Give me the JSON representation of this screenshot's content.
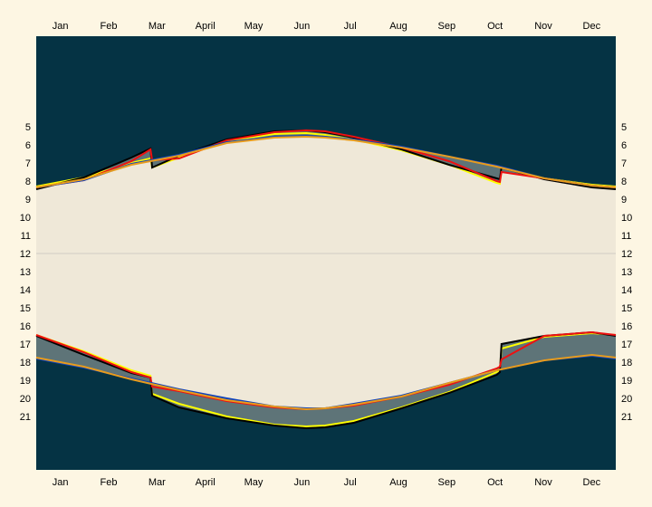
{
  "chart_data": {
    "type": "area",
    "title": "",
    "xlabel": "",
    "ylabel": "",
    "months": [
      "Jan",
      "Feb",
      "Mar",
      "April",
      "May",
      "Jun",
      "Jul",
      "Aug",
      "Sep",
      "Oct",
      "Nov",
      "Dec"
    ],
    "hour_ticks": [
      "5",
      "6",
      "7",
      "8",
      "9",
      "10",
      "11",
      "12",
      "13",
      "14",
      "15",
      "16",
      "17",
      "18",
      "19",
      "20",
      "21"
    ],
    "ylim": [
      0,
      24
    ],
    "xlim": [
      0,
      365
    ],
    "grid_hours": [
      12
    ],
    "colors": {
      "page_background": "#fdf6e3",
      "night": "#053344",
      "day": "#efe8d8",
      "gap": "#5e7478",
      "noon_line": "#d0ccc4",
      "yellow": "#ffff00",
      "black": "#000000",
      "red": "#ee1111",
      "blue": "#1144bb",
      "orange": "#e89c1c"
    },
    "series": [
      {
        "color": "yellow",
        "x": [
          0,
          30,
          60,
          72,
          73,
          90,
          120,
          150,
          170,
          182,
          200,
          230,
          260,
          290,
          292,
          293,
          320,
          350,
          365
        ],
        "sunrise": [
          8.3,
          7.8,
          7.0,
          6.75,
          7.25,
          6.7,
          5.8,
          5.4,
          5.35,
          5.45,
          5.7,
          6.3,
          7.1,
          8.1,
          8.15,
          7.25,
          7.85,
          8.2,
          8.3
        ],
        "sunset": [
          16.5,
          17.4,
          18.45,
          18.75,
          19.75,
          20.3,
          21.0,
          21.45,
          21.55,
          21.5,
          21.25,
          20.5,
          19.65,
          18.55,
          18.45,
          17.25,
          16.6,
          16.4,
          16.5
        ]
      },
      {
        "color": "black",
        "x": [
          0,
          30,
          60,
          72,
          73,
          90,
          120,
          150,
          170,
          182,
          200,
          230,
          260,
          290,
          292,
          293,
          320,
          350,
          365
        ],
        "sunrise": [
          8.45,
          7.8,
          6.7,
          6.2,
          7.25,
          6.6,
          5.7,
          5.25,
          5.2,
          5.3,
          5.6,
          6.25,
          7.1,
          7.85,
          7.9,
          7.25,
          7.9,
          8.35,
          8.45
        ],
        "sunset": [
          16.55,
          17.6,
          18.6,
          18.85,
          19.85,
          20.5,
          21.1,
          21.5,
          21.65,
          21.6,
          21.35,
          20.55,
          19.7,
          18.7,
          18.55,
          17.0,
          16.55,
          16.35,
          16.55
        ]
      },
      {
        "color": "red",
        "x": [
          0,
          30,
          60,
          72,
          73,
          90,
          120,
          150,
          170,
          182,
          200,
          230,
          260,
          290,
          292,
          293,
          320,
          350,
          365
        ],
        "sunrise": [
          8.35,
          7.95,
          6.9,
          6.25,
          6.85,
          6.75,
          5.75,
          5.3,
          5.2,
          5.25,
          5.55,
          6.15,
          6.9,
          8.0,
          8.05,
          7.5,
          7.85,
          8.25,
          8.35
        ],
        "sunset": [
          16.5,
          17.45,
          18.55,
          18.85,
          19.35,
          19.6,
          20.15,
          20.5,
          20.6,
          20.55,
          20.4,
          19.9,
          19.25,
          18.35,
          18.25,
          17.85,
          16.55,
          16.35,
          16.5
        ]
      },
      {
        "color": "blue",
        "x": [
          0,
          30,
          60,
          90,
          120,
          150,
          170,
          182,
          200,
          230,
          260,
          290,
          320,
          350,
          365
        ],
        "sunrise": [
          8.35,
          7.95,
          7.05,
          6.55,
          5.85,
          5.55,
          5.5,
          5.55,
          5.7,
          6.1,
          6.65,
          7.15,
          7.85,
          8.25,
          8.35
        ],
        "sunset": [
          17.8,
          18.3,
          18.9,
          19.5,
          20.0,
          20.45,
          20.55,
          20.55,
          20.3,
          19.85,
          19.15,
          18.45,
          17.9,
          17.65,
          17.8
        ]
      },
      {
        "color": "orange",
        "x": [
          0,
          30,
          60,
          90,
          120,
          150,
          170,
          182,
          200,
          230,
          260,
          290,
          320,
          350,
          365
        ],
        "sunrise": [
          8.35,
          7.9,
          7.1,
          6.6,
          5.9,
          5.6,
          5.55,
          5.6,
          5.75,
          6.15,
          6.65,
          7.2,
          7.85,
          8.25,
          8.35
        ],
        "sunset": [
          17.75,
          18.25,
          18.95,
          19.55,
          20.1,
          20.45,
          20.6,
          20.55,
          20.35,
          19.9,
          19.15,
          18.45,
          17.9,
          17.6,
          17.75
        ]
      }
    ]
  }
}
